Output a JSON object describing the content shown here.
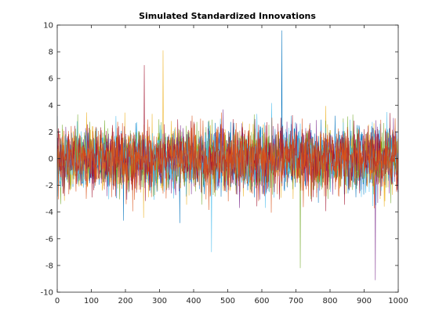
{
  "chart_data": {
    "type": "line",
    "title": "Simulated Standardized Innovations",
    "xlabel": "",
    "ylabel": "",
    "xlim": [
      0,
      1000
    ],
    "ylim": [
      -10,
      10
    ],
    "x_ticks": [
      0,
      100,
      200,
      300,
      400,
      500,
      600,
      700,
      800,
      900,
      1000
    ],
    "y_ticks": [
      -10,
      -8,
      -6,
      -4,
      -2,
      0,
      2,
      4,
      6,
      8,
      10
    ],
    "grid": false,
    "legend": "none",
    "n_points_per_series": 1000,
    "series_count": 7,
    "series_colors": [
      "#0072BD",
      "#EDB120",
      "#7E2F8E",
      "#77AC30",
      "#4DBEEE",
      "#A2142F",
      "#D95319"
    ],
    "notable_values": [
      {
        "x": 658,
        "y": 9.6
      },
      {
        "x": 310,
        "y": 8.1
      },
      {
        "x": 932,
        "y": -9.1
      },
      {
        "x": 712,
        "y": -8.2
      },
      {
        "x": 452,
        "y": -7.0
      },
      {
        "x": 255,
        "y": 7.0
      }
    ]
  }
}
